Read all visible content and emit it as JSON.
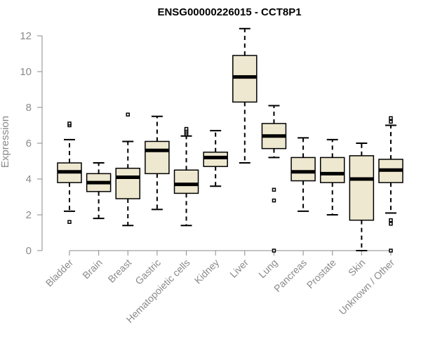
{
  "chart_data": {
    "type": "box",
    "title": "ENSG00000226015 - CCT8P1",
    "xlabel": "",
    "ylabel": "Expression",
    "ylim": [
      0,
      12
    ],
    "yticks": [
      0,
      2,
      4,
      6,
      8,
      10,
      12
    ],
    "grid": false,
    "legend": "none",
    "box_fill": "#eee8d0",
    "box_stroke": "#000000",
    "categories": [
      "Bladder",
      "Brain",
      "Breast",
      "Gastric",
      "Hematopoietic cells",
      "Kidney",
      "Liver",
      "Lung",
      "Pancreas",
      "Prostate",
      "Skin",
      "Unknown / Other"
    ],
    "boxes": [
      {
        "category": "Bladder",
        "min": 2.2,
        "q1": 3.8,
        "median": 4.4,
        "q3": 4.9,
        "max": 6.2,
        "outliers": [
          1.6,
          7.0,
          7.1
        ]
      },
      {
        "category": "Brain",
        "min": 1.8,
        "q1": 3.3,
        "median": 3.8,
        "q3": 4.3,
        "max": 4.9,
        "outliers": []
      },
      {
        "category": "Breast",
        "min": 1.4,
        "q1": 2.9,
        "median": 4.1,
        "q3": 4.6,
        "max": 6.1,
        "outliers": [
          7.6
        ]
      },
      {
        "category": "Gastric",
        "min": 2.3,
        "q1": 4.3,
        "median": 5.6,
        "q3": 6.1,
        "max": 7.5,
        "outliers": []
      },
      {
        "category": "Hematopoietic cells",
        "min": 1.4,
        "q1": 3.2,
        "median": 3.7,
        "q3": 4.5,
        "max": 6.4,
        "outliers": [
          6.5,
          6.6,
          6.7,
          6.8
        ]
      },
      {
        "category": "Kidney",
        "min": 3.6,
        "q1": 4.7,
        "median": 5.2,
        "q3": 5.5,
        "max": 6.7,
        "outliers": []
      },
      {
        "category": "Liver",
        "min": 4.9,
        "q1": 8.3,
        "median": 9.7,
        "q3": 10.9,
        "max": 12.4,
        "outliers": []
      },
      {
        "category": "Lung",
        "min": 5.2,
        "q1": 5.7,
        "median": 6.4,
        "q3": 7.1,
        "max": 8.1,
        "outliers": [
          0.0,
          2.8,
          3.4
        ]
      },
      {
        "category": "Pancreas",
        "min": 2.2,
        "q1": 3.9,
        "median": 4.4,
        "q3": 5.2,
        "max": 6.3,
        "outliers": []
      },
      {
        "category": "Prostate",
        "min": 2.0,
        "q1": 3.8,
        "median": 4.3,
        "q3": 5.2,
        "max": 6.2,
        "outliers": []
      },
      {
        "category": "Skin",
        "min": 0.0,
        "q1": 1.7,
        "median": 4.0,
        "q3": 5.3,
        "max": 6.0,
        "outliers": []
      },
      {
        "category": "Unknown / Other",
        "min": 2.1,
        "q1": 3.8,
        "median": 4.5,
        "q3": 5.1,
        "max": 7.0,
        "outliers": [
          0.0,
          1.5,
          1.7,
          7.2,
          7.4
        ]
      }
    ]
  }
}
